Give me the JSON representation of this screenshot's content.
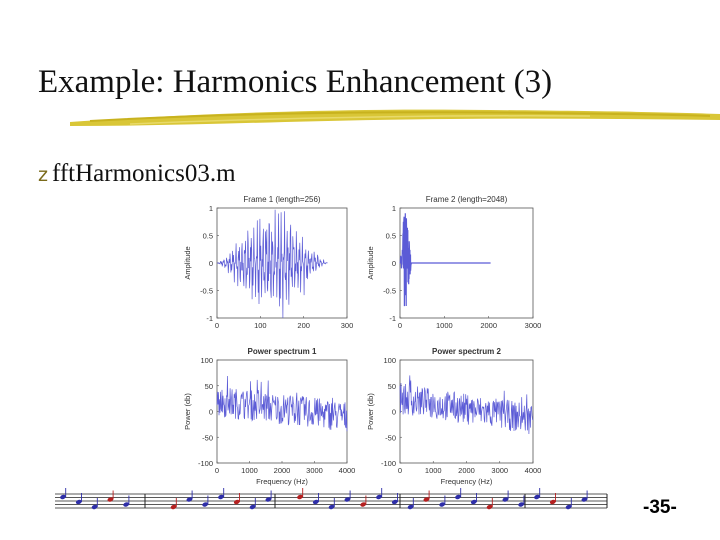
{
  "slide": {
    "title": "Example: Harmonics Enhancement (3)",
    "bullet_symbol": "z",
    "bullet_text": "fftHarmonics03.m",
    "page_number": "-35-"
  },
  "chart_data": [
    {
      "type": "line",
      "title": "Frame 1 (length=256)",
      "xlabel": "",
      "ylabel": "Amplitude",
      "xlim": [
        0,
        300
      ],
      "ylim": [
        -1,
        1
      ],
      "xticks": [
        "0",
        "100",
        "200",
        "300"
      ],
      "yticks": [
        "1",
        "0.5",
        "0",
        "-0.5",
        "-1"
      ],
      "series": [
        {
          "color": "#5b5bd6",
          "x_range": [
            0,
            256
          ],
          "envelope_peak": 1.0
        }
      ]
    },
    {
      "type": "line",
      "title": "Frame 2 (length=2048)",
      "xlabel": "",
      "ylabel": "Amplitude",
      "xlim": [
        0,
        3000
      ],
      "ylim": [
        -1,
        1
      ],
      "xticks": [
        "0",
        "1000",
        "2000",
        "3000"
      ],
      "yticks": [
        "1",
        "0.5",
        "0",
        "-0.5",
        "-1"
      ],
      "series": [
        {
          "color": "#5b5bd6",
          "x_range": [
            0,
            2048
          ],
          "envelope_peak": 1.0
        }
      ]
    },
    {
      "type": "line",
      "title": "Power spectrum 1",
      "xlabel": "Frequency (Hz)",
      "ylabel": "Power (db)",
      "xlim": [
        0,
        4000
      ],
      "ylim": [
        -100,
        100
      ],
      "xticks": [
        "0",
        "1000",
        "2000",
        "3000",
        "4000"
      ],
      "yticks": [
        "100",
        "50",
        "0",
        "-50",
        "-100"
      ],
      "series": [
        {
          "color": "#5b5bd6",
          "level_start": 20,
          "level_end": -10
        }
      ]
    },
    {
      "type": "line",
      "title": "Power spectrum 2",
      "xlabel": "Frequency (Hz)",
      "ylabel": "Power (db)",
      "xlim": [
        0,
        4000
      ],
      "ylim": [
        -100,
        100
      ],
      "xticks": [
        "0",
        "1000",
        "2000",
        "3000",
        "4000"
      ],
      "yticks": [
        "100",
        "50",
        "0",
        "-50",
        "-100"
      ],
      "series": [
        {
          "color": "#5b5bd6",
          "level_start": 25,
          "level_end": -15
        }
      ]
    }
  ]
}
